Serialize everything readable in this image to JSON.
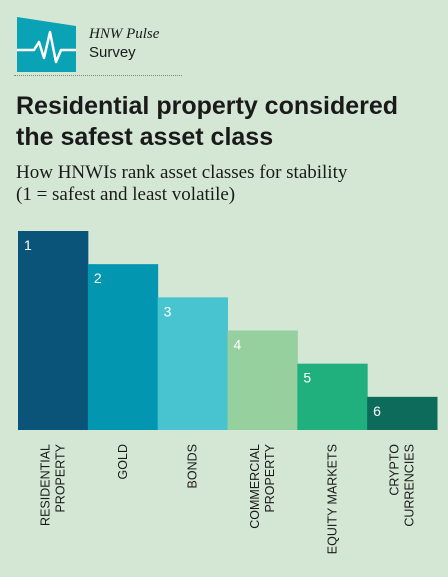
{
  "brand": {
    "line1": "HNW Pulse",
    "line2": "Survey"
  },
  "headline": "Residential property considered the safest asset class",
  "subtitle": {
    "line1": "How HNWIs rank asset classes for stability",
    "line2": "(1 = safest and least volatile)"
  },
  "colors": {
    "background": "#d4e7d5",
    "logo": "#0aa3b5"
  },
  "chart_data": {
    "type": "bar",
    "title": "Residential property considered the safest asset class",
    "subtitle": "How HNWIs rank asset classes for stability (1 = safest and least volatile)",
    "categories": [
      [
        "RESIDENTIAL",
        "PROPERTY"
      ],
      [
        "GOLD"
      ],
      [
        "BONDS"
      ],
      [
        "COMMERCIAL",
        "PROPERTY"
      ],
      [
        "EQUITY MARKETS"
      ],
      [
        "CRYPTO",
        "CURRENCIES"
      ]
    ],
    "values": [
      1,
      2,
      3,
      4,
      5,
      6
    ],
    "bar_labels": [
      "1",
      "2",
      "3",
      "4",
      "5",
      "6"
    ],
    "colors": [
      "#0a5379",
      "#0296b0",
      "#47c4d0",
      "#96d09f",
      "#1fb07d",
      "#0c6b5b"
    ],
    "axis": "rank, 1 = safest; taller bar = safer",
    "ylim": [
      0,
      7
    ]
  }
}
